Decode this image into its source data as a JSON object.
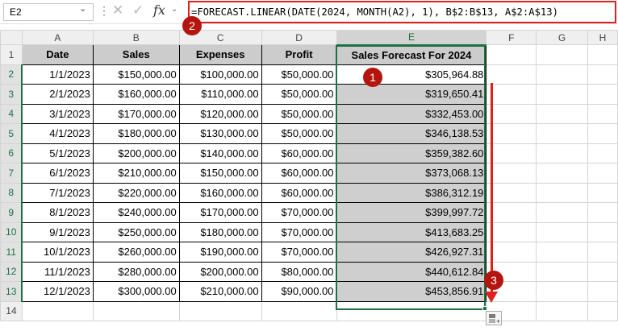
{
  "formula_bar": {
    "name_box": "E2",
    "formula": "=FORECAST.LINEAR(DATE(2024, MONTH(A2), 1), B$2:B$13, A$2:A$13)",
    "fx_label": "fx"
  },
  "columns": [
    "A",
    "B",
    "C",
    "D",
    "E",
    "F",
    "G",
    "H"
  ],
  "header_row": {
    "row_number": "1",
    "cells": [
      "Date",
      "Sales",
      "Expenses",
      "Profit",
      "Sales Forecast For 2024"
    ]
  },
  "rows": [
    {
      "n": "2",
      "date": "1/1/2023",
      "sales": "$150,000.00",
      "expenses": "$100,000.00",
      "profit": "$50,000.00",
      "forecast": "$305,964.88"
    },
    {
      "n": "3",
      "date": "2/1/2023",
      "sales": "$160,000.00",
      "expenses": "$110,000.00",
      "profit": "$50,000.00",
      "forecast": "$319,650.41"
    },
    {
      "n": "4",
      "date": "3/1/2023",
      "sales": "$170,000.00",
      "expenses": "$120,000.00",
      "profit": "$50,000.00",
      "forecast": "$332,453.00"
    },
    {
      "n": "5",
      "date": "4/1/2023",
      "sales": "$180,000.00",
      "expenses": "$130,000.00",
      "profit": "$50,000.00",
      "forecast": "$346,138.53"
    },
    {
      "n": "6",
      "date": "5/1/2023",
      "sales": "$200,000.00",
      "expenses": "$140,000.00",
      "profit": "$60,000.00",
      "forecast": "$359,382.60"
    },
    {
      "n": "7",
      "date": "6/1/2023",
      "sales": "$210,000.00",
      "expenses": "$150,000.00",
      "profit": "$60,000.00",
      "forecast": "$373,068.13"
    },
    {
      "n": "8",
      "date": "7/1/2023",
      "sales": "$220,000.00",
      "expenses": "$160,000.00",
      "profit": "$60,000.00",
      "forecast": "$386,312.19"
    },
    {
      "n": "9",
      "date": "8/1/2023",
      "sales": "$240,000.00",
      "expenses": "$170,000.00",
      "profit": "$70,000.00",
      "forecast": "$399,997.72"
    },
    {
      "n": "10",
      "date": "9/1/2023",
      "sales": "$250,000.00",
      "expenses": "$180,000.00",
      "profit": "$70,000.00",
      "forecast": "$413,683.25"
    },
    {
      "n": "11",
      "date": "10/1/2023",
      "sales": "$260,000.00",
      "expenses": "$190,000.00",
      "profit": "$70,000.00",
      "forecast": "$426,927.31"
    },
    {
      "n": "12",
      "date": "11/1/2023",
      "sales": "$280,000.00",
      "expenses": "$200,000.00",
      "profit": "$80,000.00",
      "forecast": "$440,612.84"
    },
    {
      "n": "13",
      "date": "12/1/2023",
      "sales": "$300,000.00",
      "expenses": "$210,000.00",
      "profit": "$90,000.00",
      "forecast": "$453,856.91"
    }
  ],
  "last_row_number": "14",
  "annotations": {
    "step1": "1",
    "step2": "2",
    "step3": "3"
  },
  "colors": {
    "accent_green": "#1e7145",
    "annotation_red": "#e0201c",
    "badge_red": "#b4150f"
  }
}
